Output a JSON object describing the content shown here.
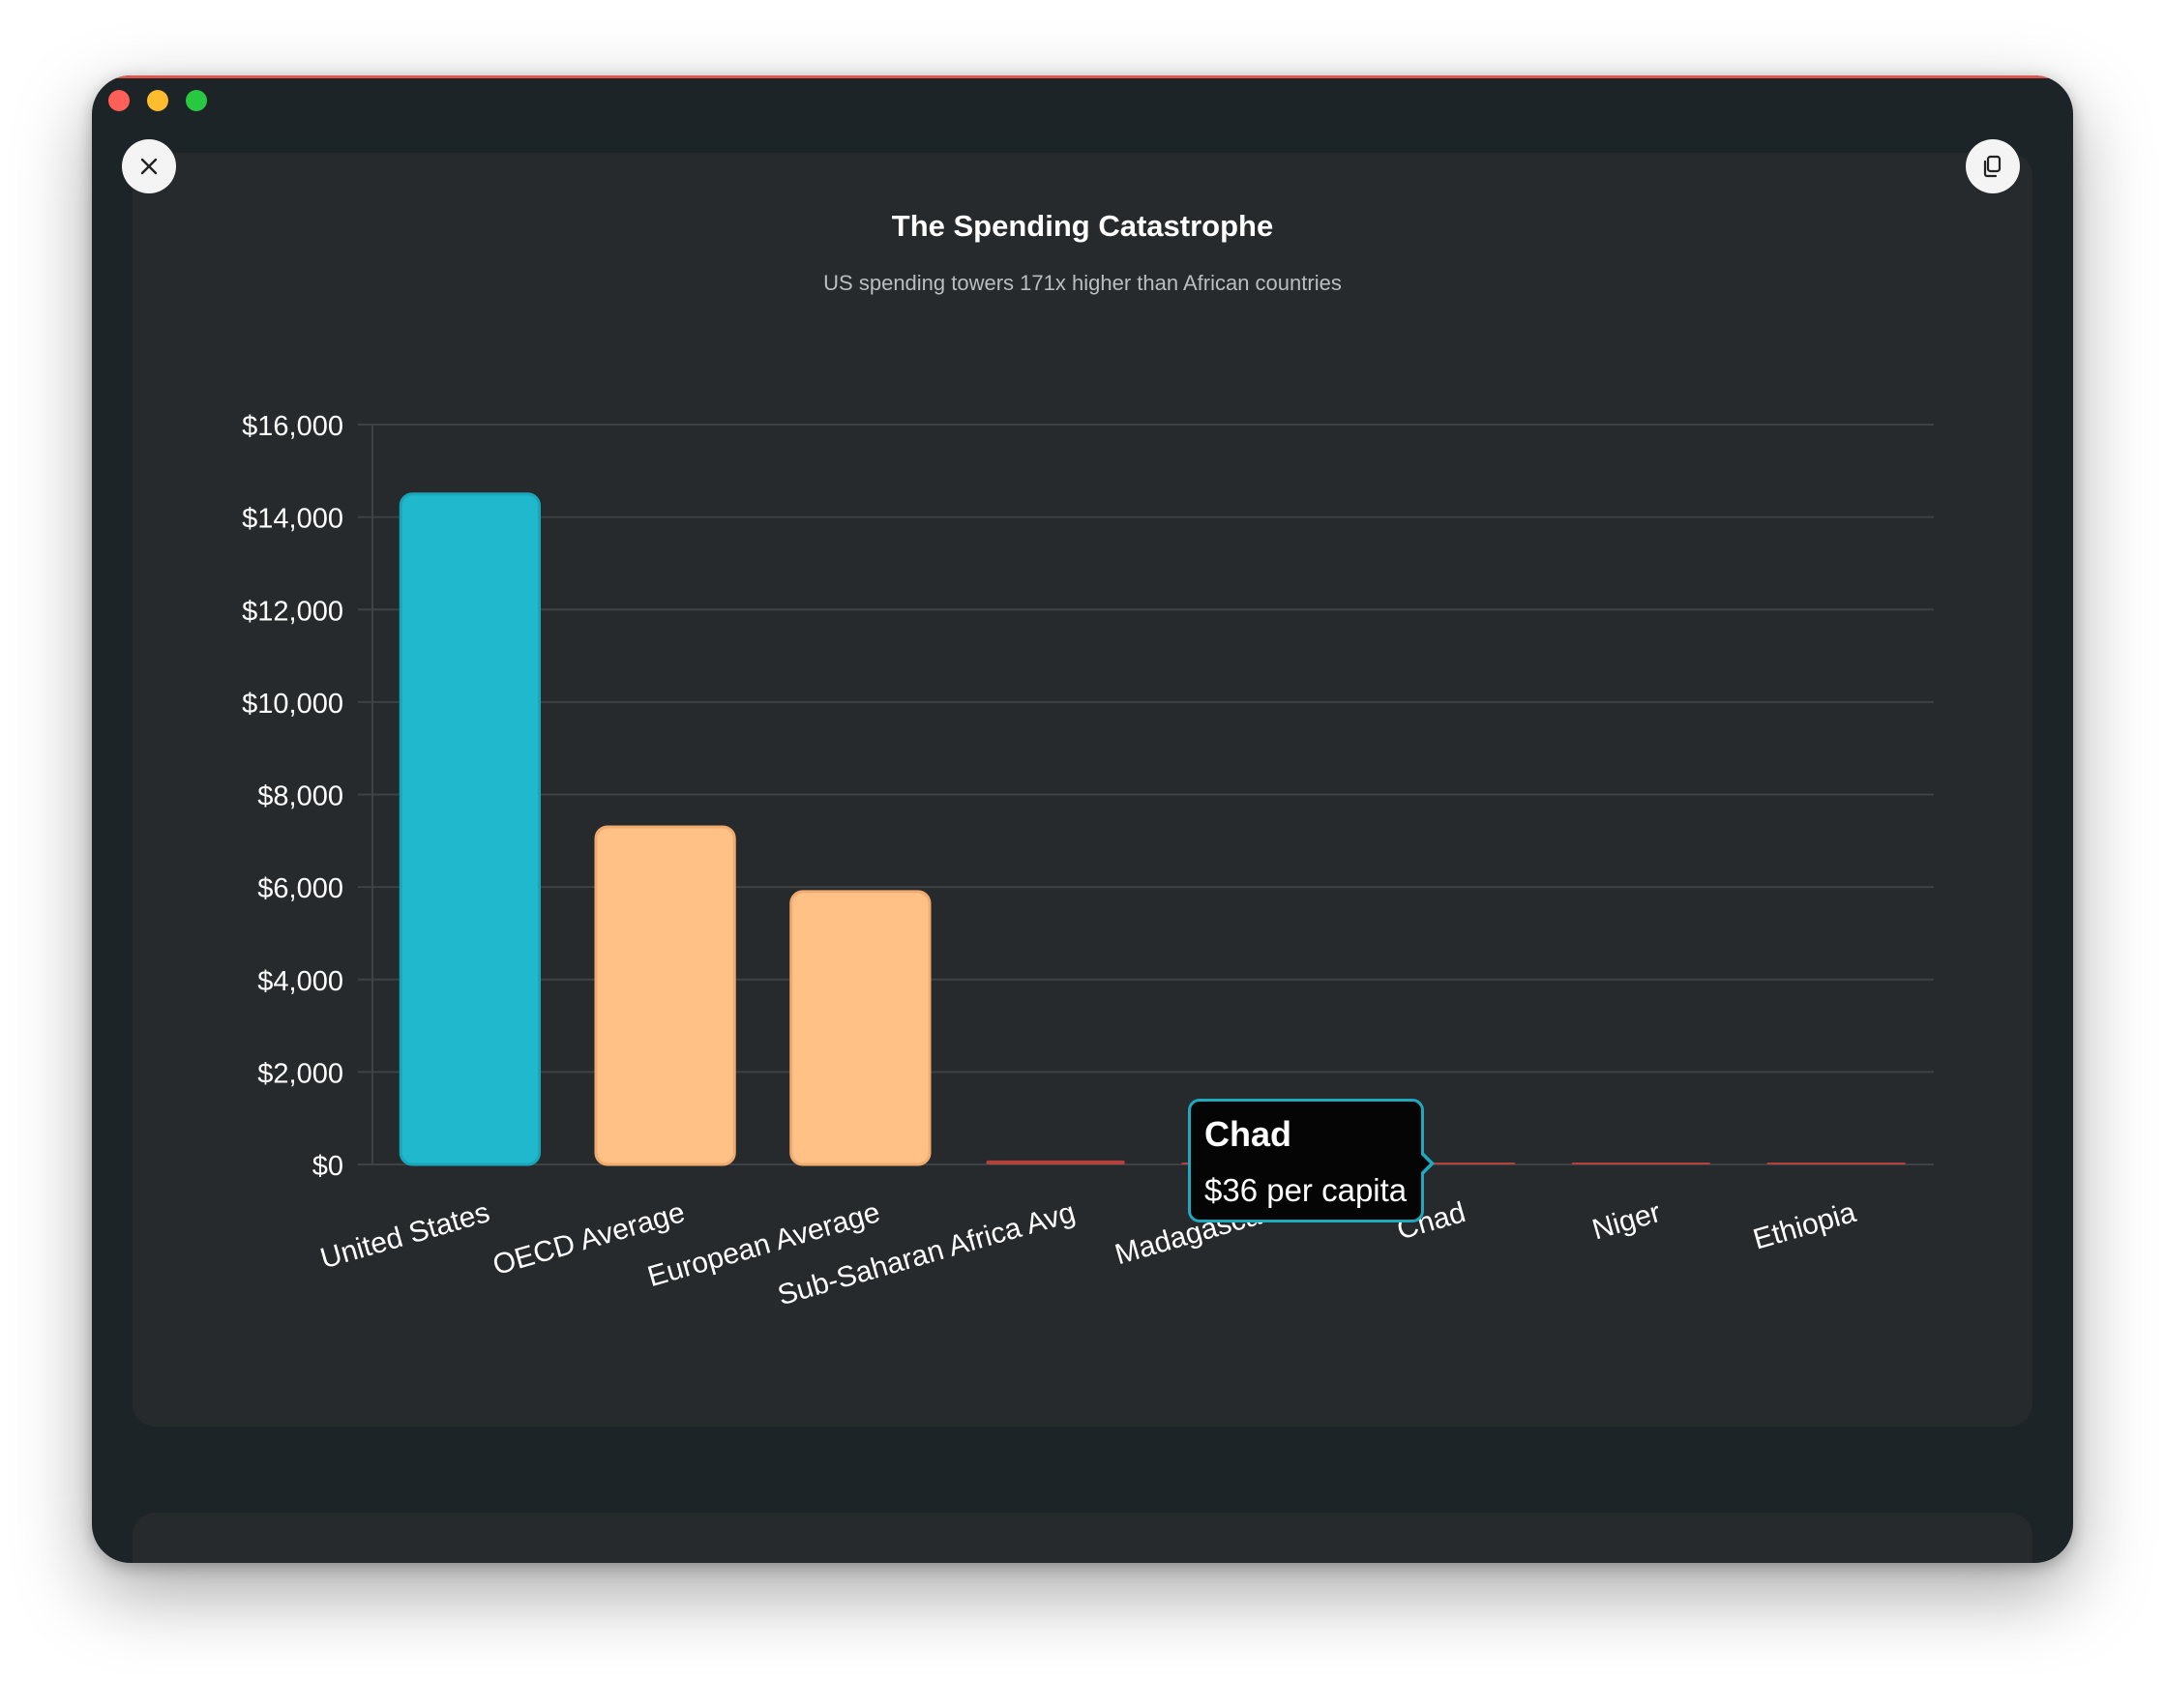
{
  "window": {
    "close_icon": "close-icon",
    "copy_icon": "copy-icon"
  },
  "chart_data": {
    "type": "bar",
    "title": "The Spending Catastrophe",
    "subtitle": "US spending towers 171x higher than African countries",
    "categories": [
      "United States",
      "OECD Average",
      "European Average",
      "Sub-Saharan Africa Avg",
      "Madagascar",
      "Chad",
      "Niger",
      "Ethiopia"
    ],
    "values": [
      14500,
      7300,
      5900,
      85,
      25,
      36,
      30,
      28
    ],
    "colors": [
      "#1fb8cd",
      "#ffc185",
      "#ffc185",
      "#b4413c",
      "#b4413c",
      "#b4413c",
      "#b4413c",
      "#b4413c"
    ],
    "ylim": [
      0,
      16000
    ],
    "yticks": [
      0,
      2000,
      4000,
      6000,
      8000,
      10000,
      12000,
      14000,
      16000
    ],
    "ytick_labels": [
      "$0",
      "$2,000",
      "$4,000",
      "$6,000",
      "$8,000",
      "$10,000",
      "$12,000",
      "$14,000",
      "$16,000"
    ],
    "grid": true,
    "tooltip": {
      "category": "Chad",
      "title": "Chad",
      "text": "$36 per capita"
    }
  }
}
